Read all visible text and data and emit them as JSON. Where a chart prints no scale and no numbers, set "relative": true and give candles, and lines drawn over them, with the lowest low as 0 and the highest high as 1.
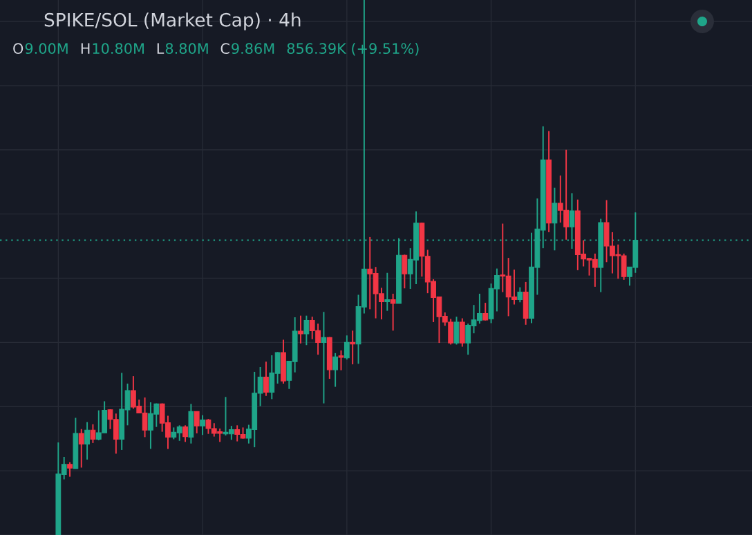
{
  "chart_data": {
    "type": "candlestick",
    "title": "SPIKE/SOL (Market Cap) · 4h",
    "annotations": [
      "O",
      "9.00M",
      "H",
      "10.80M",
      "L",
      "8.80M",
      "C",
      "9.86M",
      "856.39K (+9.51%)"
    ],
    "relative": true,
    "grid": true,
    "categories": [
      null,
      null,
      null,
      null,
      null,
      null,
      null,
      null,
      null,
      null,
      null,
      null,
      null,
      null,
      null,
      null,
      null,
      null,
      null,
      null,
      null,
      null,
      null,
      null,
      null,
      null,
      null,
      null,
      null,
      null,
      null,
      null,
      null,
      null,
      null,
      null,
      null,
      null,
      null,
      null,
      null,
      null,
      null,
      null,
      null,
      null,
      null,
      null,
      null,
      null,
      null,
      null,
      null,
      null,
      null,
      null,
      null,
      null,
      null,
      null,
      null,
      null,
      null,
      null,
      null,
      null,
      null,
      null,
      null,
      null,
      null,
      null,
      null,
      null,
      null,
      null,
      null,
      null,
      null,
      null,
      null,
      null,
      null,
      null,
      null,
      null,
      null,
      null,
      null,
      null,
      null,
      null,
      null,
      null,
      null,
      null,
      null,
      null,
      null,
      null,
      null
    ],
    "ohlc": [
      [
        0,
        0.173,
        0,
        0.114
      ],
      [
        0.113,
        0.146,
        0.104,
        0.132
      ],
      [
        0.132,
        0.136,
        0.109,
        0.125
      ],
      [
        0.124,
        0.219,
        0.124,
        0.19
      ],
      [
        0.19,
        0.198,
        0.126,
        0.17
      ],
      [
        0.17,
        0.211,
        0.141,
        0.196
      ],
      [
        0.196,
        0.207,
        0.172,
        0.179
      ],
      [
        0.179,
        0.233,
        0.177,
        0.191
      ],
      [
        0.191,
        0.25,
        0.191,
        0.233
      ],
      [
        0.234,
        0.235,
        0.198,
        0.216
      ],
      [
        0.216,
        0.227,
        0.152,
        0.179
      ],
      [
        0.179,
        0.303,
        0.159,
        0.235
      ],
      [
        0.234,
        0.283,
        0.205,
        0.27
      ],
      [
        0.27,
        0.297,
        0.236,
        0.239
      ],
      [
        0.241,
        0.253,
        0.228,
        0.228
      ],
      [
        0.228,
        0.257,
        0.183,
        0.196
      ],
      [
        0.196,
        0.248,
        0.161,
        0.227
      ],
      [
        0.226,
        0.246,
        0.202,
        0.245
      ],
      [
        0.245,
        0.246,
        0.193,
        0.209
      ],
      [
        0.21,
        0.223,
        0.161,
        0.183
      ],
      [
        0.183,
        0.201,
        0.179,
        0.192
      ],
      [
        0.191,
        0.205,
        0.176,
        0.202
      ],
      [
        0.202,
        0.205,
        0.174,
        0.184
      ],
      [
        0.183,
        0.245,
        0.171,
        0.231
      ],
      [
        0.231,
        0.231,
        0.19,
        0.204
      ],
      [
        0.204,
        0.224,
        0.187,
        0.215
      ],
      [
        0.215,
        0.217,
        0.189,
        0.199
      ],
      [
        0.199,
        0.209,
        0.184,
        0.19
      ],
      [
        0.193,
        0.199,
        0.174,
        0.19
      ],
      [
        0.189,
        0.258,
        0.186,
        0.192
      ],
      [
        0.189,
        0.204,
        0.178,
        0.197
      ],
      [
        0.197,
        0.205,
        0.175,
        0.188
      ],
      [
        0.188,
        0.201,
        0.18,
        0.181
      ],
      [
        0.181,
        0.206,
        0.171,
        0.198
      ],
      [
        0.197,
        0.305,
        0.164,
        0.265
      ],
      [
        0.265,
        0.314,
        0.241,
        0.295
      ],
      [
        0.295,
        0.324,
        0.26,
        0.267
      ],
      [
        0.267,
        0.336,
        0.254,
        0.303
      ],
      [
        0.302,
        0.342,
        0.283,
        0.341
      ],
      [
        0.341,
        0.365,
        0.283,
        0.288
      ],
      [
        0.289,
        0.325,
        0.273,
        0.325
      ],
      [
        0.324,
        0.407,
        0.304,
        0.381
      ],
      [
        0.381,
        0.41,
        0.358,
        0.376
      ],
      [
        0.376,
        0.41,
        0.355,
        0.401
      ],
      [
        0.401,
        0.408,
        0.366,
        0.382
      ],
      [
        0.382,
        0.395,
        0.337,
        0.36
      ],
      [
        0.36,
        0.417,
        0.246,
        0.369
      ],
      [
        0.369,
        0.37,
        0.292,
        0.309
      ],
      [
        0.309,
        0.34,
        0.277,
        0.333
      ],
      [
        0.335,
        0.345,
        0.308,
        0.332
      ],
      [
        0.331,
        0.373,
        0.328,
        0.36
      ],
      [
        0.36,
        0.382,
        0.319,
        0.357
      ],
      [
        0.357,
        0.449,
        0.32,
        0.427
      ],
      [
        0.426,
        1,
        0.414,
        0.497
      ],
      [
        0.497,
        0.557,
        0.422,
        0.488
      ],
      [
        0.489,
        0.501,
        0.405,
        0.451
      ],
      [
        0.451,
        0.462,
        0.403,
        0.436
      ],
      [
        0.436,
        0.49,
        0.419,
        0.44
      ],
      [
        0.44,
        0.451,
        0.382,
        0.433
      ],
      [
        0.433,
        0.555,
        0.433,
        0.523
      ],
      [
        0.523,
        0.524,
        0.461,
        0.488
      ],
      [
        0.488,
        0.536,
        0.46,
        0.515
      ],
      [
        0.514,
        0.605,
        0.469,
        0.583
      ],
      [
        0.583,
        0.584,
        0.483,
        0.521
      ],
      [
        0.521,
        0.533,
        0.452,
        0.473
      ],
      [
        0.474,
        0.478,
        0.398,
        0.444
      ],
      [
        0.445,
        0.445,
        0.359,
        0.408
      ],
      [
        0.409,
        0.416,
        0.391,
        0.398
      ],
      [
        0.398,
        0.404,
        0.356,
        0.359
      ],
      [
        0.359,
        0.408,
        0.356,
        0.398
      ],
      [
        0.398,
        0.405,
        0.352,
        0.359
      ],
      [
        0.359,
        0.395,
        0.337,
        0.392
      ],
      [
        0.391,
        0.43,
        0.377,
        0.402
      ],
      [
        0.401,
        0.451,
        0.395,
        0.414
      ],
      [
        0.414,
        0.434,
        0.401,
        0.402
      ],
      [
        0.404,
        0.47,
        0.396,
        0.461
      ],
      [
        0.46,
        0.498,
        0.418,
        0.485
      ],
      [
        0.486,
        0.582,
        0.454,
        0.484
      ],
      [
        0.484,
        0.518,
        0.409,
        0.445
      ],
      [
        0.445,
        0.496,
        0.431,
        0.44
      ],
      [
        0.44,
        0.463,
        0.435,
        0.454
      ],
      [
        0.454,
        0.473,
        0.393,
        0.405
      ],
      [
        0.405,
        0.565,
        0.396,
        0.501
      ],
      [
        0.5,
        0.629,
        0.449,
        0.572
      ],
      [
        0.57,
        0.764,
        0.536,
        0.701
      ],
      [
        0.701,
        0.755,
        0.566,
        0.583
      ],
      [
        0.583,
        0.649,
        0.532,
        0.62
      ],
      [
        0.62,
        0.672,
        0.584,
        0.607
      ],
      [
        0.607,
        0.72,
        0.552,
        0.576
      ],
      [
        0.576,
        0.639,
        0.535,
        0.606
      ],
      [
        0.606,
        0.627,
        0.495,
        0.524
      ],
      [
        0.525,
        0.551,
        0.502,
        0.516
      ],
      [
        0.517,
        0.517,
        0.485,
        0.514
      ],
      [
        0.515,
        0.526,
        0.464,
        0.5
      ],
      [
        0.5,
        0.591,
        0.454,
        0.584
      ],
      [
        0.584,
        0.626,
        0.51,
        0.54
      ],
      [
        0.54,
        0.566,
        0.489,
        0.522
      ],
      [
        0.524,
        0.543,
        0.479,
        0.522
      ],
      [
        0.522,
        0.526,
        0.477,
        0.483
      ],
      [
        0.483,
        0.501,
        0.466,
        0.501
      ],
      [
        0.5,
        0.603,
        0.49,
        0.551
      ]
    ],
    "colors": [
      "#1fa589",
      "#1fa589",
      "#f23645",
      "#1fa589",
      "#f23645",
      "#1fa589",
      "#f23645",
      "#1fa589",
      "#1fa589",
      "#f23645",
      "#f23645",
      "#1fa589",
      "#1fa589",
      "#f23645",
      "#f23645",
      "#f23645",
      "#1fa589",
      "#1fa589",
      "#f23645",
      "#f23645",
      "#1fa589",
      "#1fa589",
      "#f23645",
      "#1fa589",
      "#f23645",
      "#1fa589",
      "#f23645",
      "#f23645",
      "#f23645",
      "#1fa589",
      "#1fa589",
      "#f23645",
      "#f23645",
      "#1fa589",
      "#1fa589",
      "#1fa589",
      "#f23645",
      "#1fa589",
      "#1fa589",
      "#f23645",
      "#1fa589",
      "#1fa589",
      "#f23645",
      "#1fa589",
      "#f23645",
      "#f23645",
      "#1fa589",
      "#f23645",
      "#1fa589",
      "#f23645",
      "#1fa589",
      "#f23645",
      "#1fa589",
      "#1fa589",
      "#f23645",
      "#f23645",
      "#f23645",
      "#1fa589",
      "#f23645",
      "#1fa589",
      "#f23645",
      "#1fa589",
      "#1fa589",
      "#f23645",
      "#f23645",
      "#f23645",
      "#f23645",
      "#f23645",
      "#f23645",
      "#1fa589",
      "#f23645",
      "#1fa589",
      "#1fa589",
      "#1fa589",
      "#f23645",
      "#1fa589",
      "#1fa589",
      "#f23645",
      "#f23645",
      "#f23645",
      "#1fa589",
      "#f23645",
      "#1fa589",
      "#1fa589",
      "#1fa589",
      "#f23645",
      "#1fa589",
      "#f23645",
      "#f23645",
      "#1fa589",
      "#f23645",
      "#f23645",
      "#f23645",
      "#f23645",
      "#1fa589",
      "#f23645",
      "#f23645",
      "#f23645",
      "#f23645",
      "#1fa589",
      "#1fa589"
    ],
    "ref_lines": [
      {
        "axis": "y",
        "value": 0.551,
        "color": "#1fa589",
        "line_style": "dotted"
      }
    ]
  }
}
